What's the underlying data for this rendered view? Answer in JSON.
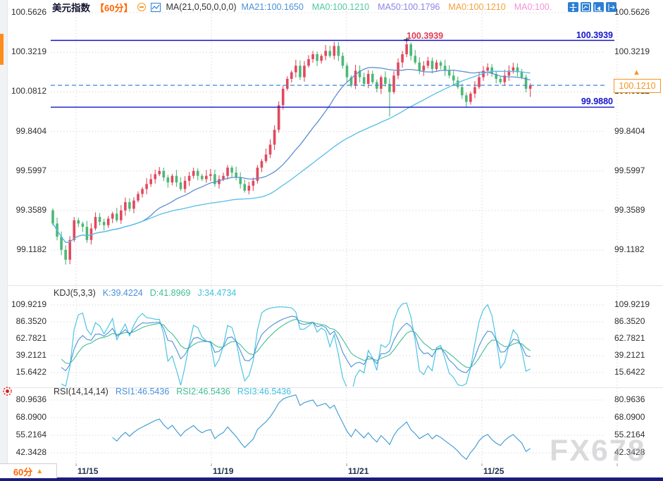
{
  "header": {
    "symbol": "美元指数",
    "period": "【60分】",
    "ma_settings": "MA(21,0,50,0,0,0)",
    "ma_values": [
      {
        "label": "MA21:100.1650",
        "color": "#4a90d9"
      },
      {
        "label": "MA0:100.1210",
        "color": "#4ec9a0"
      },
      {
        "label": "MA50:100.1796",
        "color": "#8d85e8"
      },
      {
        "label": "MA0:100.1210",
        "color": "#f5a03c"
      },
      {
        "label": "MA0:100.",
        "color": "#f492d8"
      }
    ],
    "toolbar_icons": [
      "pan-tool",
      "fit-scale",
      "go-latest",
      "collapse-right"
    ]
  },
  "main_chart": {
    "y_axis_labels": [
      "100.5626",
      "100.3219",
      "100.0812",
      "99.8404",
      "99.5997",
      "99.3589",
      "99.1182"
    ],
    "x_axis_labels": [
      "11/15",
      "11/19",
      "11/21",
      "11/25"
    ],
    "annotations": {
      "high_label": "100.3939",
      "resistance_label": "100.3939",
      "support_label": "99.9880",
      "current_price": "100.1210",
      "up_arrow": "▲"
    }
  },
  "kdj_panel": {
    "title": "KDJ(5,3,3)",
    "k_label": "K:39.4224",
    "d_label": "D:41.8969",
    "j_label": "J:34.4734",
    "y_axis_labels": [
      "109.9219",
      "86.3520",
      "62.7821",
      "39.2121",
      "15.6422"
    ]
  },
  "rsi_panel": {
    "title": "RSI(14,14,14)",
    "rsi1_label": "RSI1:46.5436",
    "rsi2_label": "RSI2:46.5436",
    "rsi3_label": "RSI3:46.5436",
    "y_axis_labels": [
      "80.9636",
      "68.0900",
      "55.2164",
      "42.3428"
    ]
  },
  "footer": {
    "period_label": "60分",
    "period_arrow": "▲",
    "watermark": "FX678"
  },
  "colors": {
    "up": "#e2485e",
    "down": "#4db876",
    "ma21": "#5b8fd0",
    "ma50": "#57bde8",
    "k": "#4a90d9",
    "d": "#3fbf92",
    "j": "#3fc0e0",
    "rsi": "#4a9fd4",
    "grid": "#d9d9dc",
    "level_blue": "#1414cc",
    "current_dash": "#3d86d8",
    "accent_orange": "#f7941d",
    "period_orange": "#ff6600"
  },
  "chart_data": {
    "type": "candlestick",
    "title": "美元指数 60分",
    "interval": "60min",
    "x_dates": [
      "11/15",
      "11/19",
      "11/21",
      "11/25"
    ],
    "main_axis": [
      100.5626,
      100.3219,
      100.0812,
      99.8404,
      99.5997,
      99.3589,
      99.1182
    ],
    "y_range": [
      98.9,
      100.58
    ],
    "open_first": 99.36,
    "closes": [
      99.28,
      99.2,
      99.12,
      99.06,
      99.18,
      99.3,
      99.28,
      99.26,
      99.18,
      99.25,
      99.32,
      99.29,
      99.27,
      99.31,
      99.34,
      99.3,
      99.36,
      99.41,
      99.37,
      99.42,
      99.46,
      99.49,
      99.52,
      99.55,
      99.58,
      99.6,
      99.56,
      99.53,
      99.57,
      99.53,
      99.49,
      99.54,
      99.57,
      99.6,
      99.57,
      99.55,
      99.57,
      99.58,
      99.52,
      99.55,
      99.57,
      99.62,
      99.59,
      99.56,
      99.52,
      99.48,
      99.51,
      99.54,
      99.62,
      99.66,
      99.7,
      99.76,
      99.85,
      100.0,
      100.1,
      100.16,
      100.2,
      100.24,
      100.17,
      100.24,
      100.28,
      100.31,
      100.27,
      100.3,
      100.33,
      100.3,
      100.36,
      100.3,
      100.24,
      100.17,
      100.12,
      100.21,
      100.17,
      100.13,
      100.19,
      100.14,
      100.1,
      100.17,
      100.13,
      100.08,
      100.18,
      100.26,
      100.31,
      100.37,
      100.3,
      100.26,
      100.21,
      100.24,
      100.27,
      100.22,
      100.26,
      100.24,
      100.21,
      100.18,
      100.15,
      100.11,
      100.06,
      100.02,
      100.07,
      100.11,
      100.17,
      100.21,
      100.23,
      100.19,
      100.16,
      100.14,
      100.18,
      100.21,
      100.23,
      100.2,
      100.17,
      100.1,
      100.121
    ],
    "special_points": {
      "3": {
        "low": 99.03
      },
      "66": {
        "high": 100.385
      },
      "79": {
        "low": 99.93
      },
      "83": {
        "high": 100.3939
      },
      "97": {
        "low": 99.988
      },
      "112": {
        "low": 100.05
      }
    },
    "levels": {
      "resistance": 100.3939,
      "support": 99.988,
      "last_price": 100.121,
      "session_high": 100.3939
    },
    "indicators": {
      "ma": {
        "MA21": 100.165,
        "MA50": 100.1796,
        "MA0": 100.121
      },
      "kdj": {
        "params": [
          5,
          3,
          3
        ],
        "K": 39.4224,
        "D": 41.8969,
        "J": 34.4734,
        "axis": [
          109.9219,
          86.352,
          62.7821,
          39.2121,
          15.6422
        ]
      },
      "rsi": {
        "params": [
          14,
          14,
          14
        ],
        "RSI1": 46.5436,
        "RSI2": 46.5436,
        "RSI3": 46.5436,
        "axis": [
          80.9636,
          68.09,
          55.2164,
          42.3428
        ]
      }
    }
  }
}
